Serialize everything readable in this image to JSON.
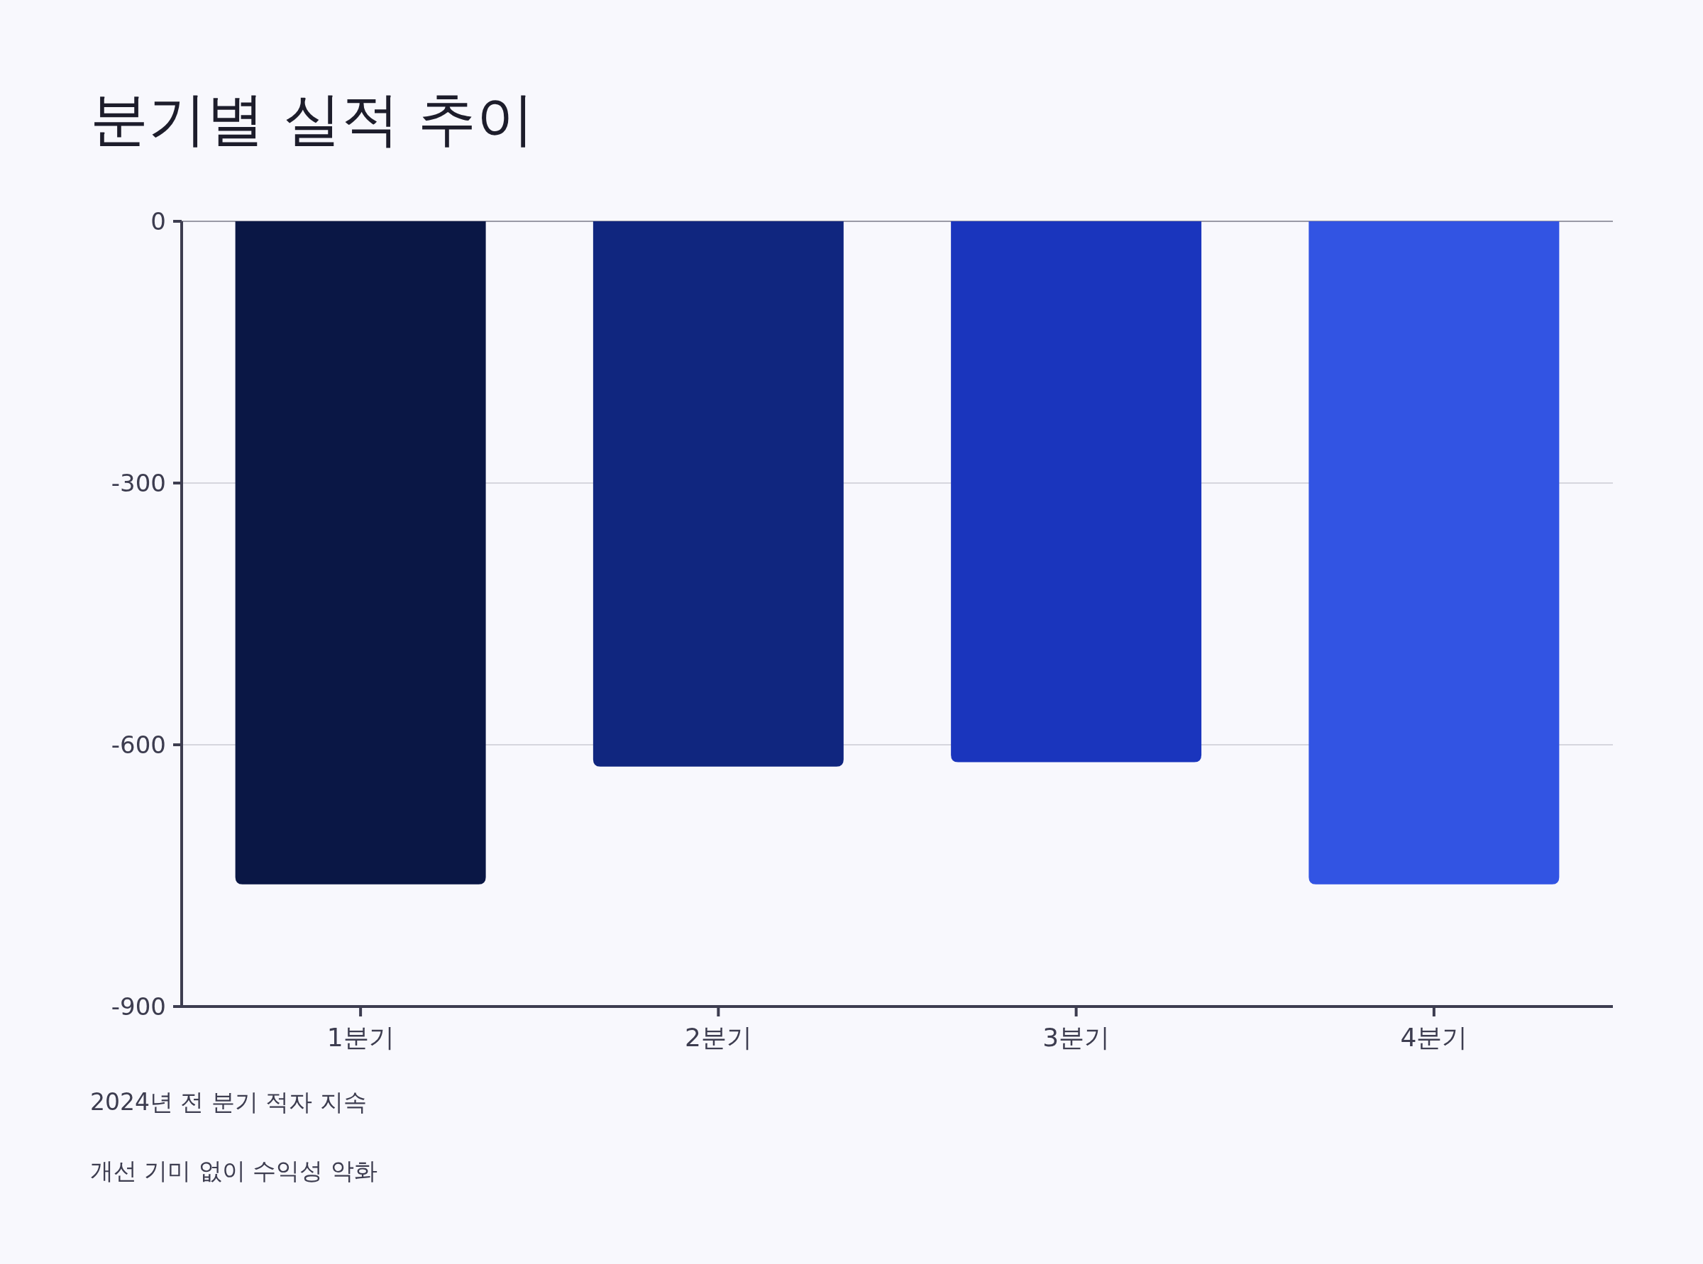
{
  "chart_data": {
    "type": "bar",
    "title": "분기별 실적 추이",
    "categories": [
      "1분기",
      "2분기",
      "3분기",
      "4분기"
    ],
    "values": [
      -760,
      -625,
      -620,
      -760
    ],
    "colors": [
      "#0a1745",
      "#10267f",
      "#1a35bd",
      "#3254e3"
    ],
    "ylim": [
      -900,
      0
    ],
    "yticks": [
      0,
      -300,
      -600,
      -900
    ],
    "grid": "y",
    "annotations": [
      "2024년 전 분기 적자 지속",
      "개선 기미 없이 수익성 악화"
    ]
  }
}
